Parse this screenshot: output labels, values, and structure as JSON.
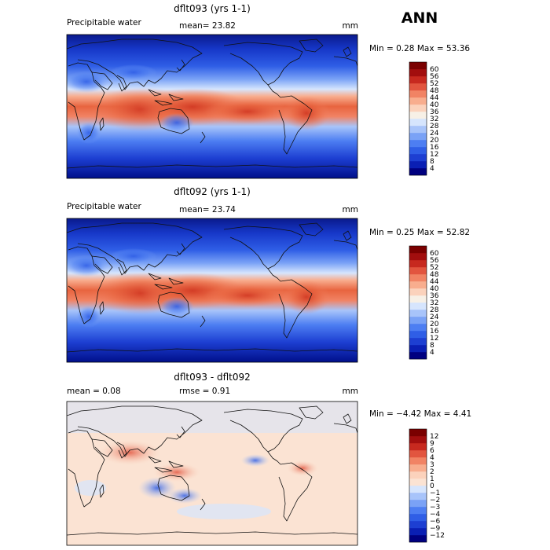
{
  "season": "ANN",
  "panels": [
    {
      "title": "dflt093 (yrs 1-1)",
      "left_label": "Precipitable water",
      "mid_label": "mean=   23.82",
      "units": "mm",
      "stats": "Min =    0.28  Max =   53.36",
      "levels": [
        "60",
        "56",
        "52",
        "48",
        "44",
        "40",
        "36",
        "32",
        "28",
        "24",
        "20",
        "16",
        "12",
        "8",
        "4"
      ]
    },
    {
      "title": "dflt092 (yrs 1-1)",
      "left_label": "Precipitable water",
      "mid_label": "mean=   23.74",
      "units": "mm",
      "stats": "Min =    0.25  Max =   52.82",
      "levels": [
        "60",
        "56",
        "52",
        "48",
        "44",
        "40",
        "36",
        "32",
        "28",
        "24",
        "20",
        "16",
        "12",
        "8",
        "4"
      ]
    },
    {
      "title": "dflt093 - dflt092",
      "left_label": "mean =    0.08",
      "mid_label": "rmse =    0.91",
      "units": "mm",
      "stats": "Min =  −4.42  Max =    4.41",
      "levels": [
        "12",
        "9",
        "6",
        "4",
        "3",
        "2",
        "1",
        "0",
        "−1",
        "−2",
        "−3",
        "−4",
        "−6",
        "−9",
        "−12"
      ]
    }
  ],
  "colors": {
    "abs_scale": [
      "#000080",
      "#0a1fb4",
      "#1d3fd2",
      "#2f5ee6",
      "#4d7ef2",
      "#7aa2f6",
      "#a8c4fa",
      "#d6e5fd",
      "#f7f0e6",
      "#fbd2bc",
      "#f8ad8e",
      "#f18364",
      "#e2553f",
      "#c7291f",
      "#a20e0e",
      "#7a0000"
    ],
    "diff_scale": [
      "#000080",
      "#0a1fb4",
      "#1d3fd2",
      "#2f5ee6",
      "#4d7ef2",
      "#7aa2f6",
      "#a8c4fa",
      "#d6e5fd",
      "#fbe3d3",
      "#fbd2bc",
      "#f8ad8e",
      "#f18364",
      "#e2553f",
      "#c7291f",
      "#a20e0e",
      "#7a0000"
    ]
  }
}
